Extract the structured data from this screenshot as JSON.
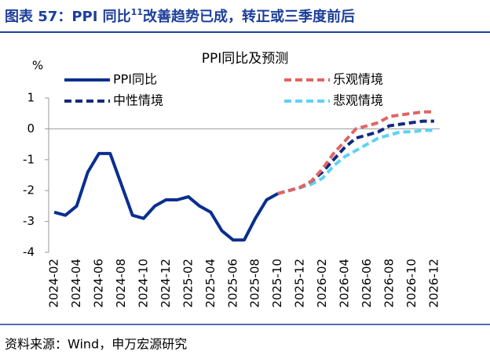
{
  "header": {
    "title": "图表 57：PPI 同比",
    "title_superscript": "11",
    "title_rest": "改善趋势已成，转正或三季度前后"
  },
  "source": "资料来源：Wind，申万宏源研究",
  "chart_data": {
    "type": "line",
    "title": "PPI同比及预测",
    "y_label": "%",
    "categories": [
      "2024-02",
      null,
      "2024-04",
      null,
      "2024-06",
      null,
      "2024-08",
      null,
      "2024-10",
      null,
      "2024-12",
      null,
      "2025-02",
      null,
      "2025-04",
      null,
      "2025-06",
      null,
      "2025-08",
      null,
      "2025-10",
      null,
      "2025-12",
      null,
      "2026-02",
      null,
      "2026-04",
      null,
      "2026-06",
      null,
      "2026-08",
      null,
      "2026-10",
      null,
      "2026-12"
    ],
    "ylim": [
      -4,
      1
    ],
    "yticks": [
      -4,
      -3,
      -2,
      -1,
      0,
      1
    ],
    "series": [
      {
        "name": "PPI同比",
        "color": "#0a2f8e",
        "dashed": false,
        "values": [
          -2.7,
          -2.8,
          -2.5,
          -1.4,
          -0.8,
          -0.8,
          -1.8,
          -2.8,
          -2.9,
          -2.5,
          -2.3,
          -2.3,
          -2.2,
          -2.5,
          -2.7,
          -3.3,
          -3.6,
          -3.6,
          -2.9,
          -2.3,
          -2.1,
          null,
          null,
          null,
          null,
          null,
          null,
          null,
          null,
          null,
          null,
          null,
          null,
          null,
          null
        ]
      },
      {
        "name": "乐观情境",
        "color": "#e06464",
        "dashed": true,
        "values": [
          null,
          null,
          null,
          null,
          null,
          null,
          null,
          null,
          null,
          null,
          null,
          null,
          null,
          null,
          null,
          null,
          null,
          null,
          null,
          null,
          -2.1,
          -2.0,
          -1.9,
          -1.7,
          -1.3,
          -0.8,
          -0.4,
          0.0,
          0.1,
          0.2,
          0.4,
          0.45,
          0.5,
          0.55,
          0.55
        ]
      },
      {
        "name": "中性情境",
        "color": "#142a7c",
        "dashed": true,
        "values": [
          null,
          null,
          null,
          null,
          null,
          null,
          null,
          null,
          null,
          null,
          null,
          null,
          null,
          null,
          null,
          null,
          null,
          null,
          null,
          null,
          -2.1,
          -2.0,
          -1.9,
          -1.7,
          -1.4,
          -1.0,
          -0.6,
          -0.3,
          -0.2,
          -0.1,
          0.1,
          0.15,
          0.2,
          0.25,
          0.25
        ]
      },
      {
        "name": "悲观情境",
        "color": "#5dd2f5",
        "dashed": true,
        "values": [
          null,
          null,
          null,
          null,
          null,
          null,
          null,
          null,
          null,
          null,
          null,
          null,
          null,
          null,
          null,
          null,
          null,
          null,
          null,
          null,
          -2.1,
          -2.0,
          -1.9,
          -1.8,
          -1.6,
          -1.2,
          -0.9,
          -0.7,
          -0.5,
          -0.3,
          -0.2,
          -0.1,
          -0.1,
          -0.05,
          -0.05
        ]
      }
    ]
  }
}
